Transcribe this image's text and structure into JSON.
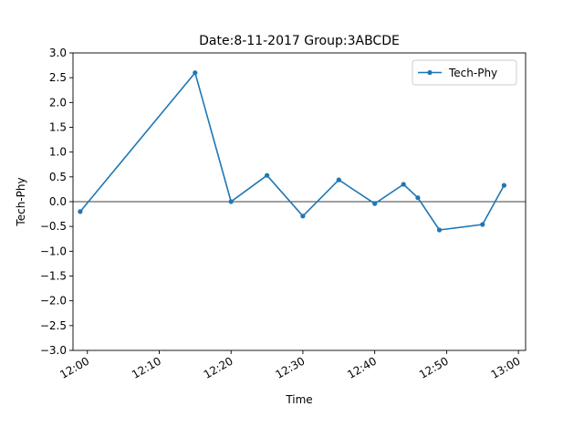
{
  "chart_data": {
    "type": "line",
    "title": "Date:8-11-2017 Group:3ABCDE",
    "xlabel": "Time",
    "ylabel": "Tech-Phy",
    "xlim": [
      "11:58",
      "13:01"
    ],
    "ylim": [
      -3.0,
      3.0
    ],
    "x_ticks": [
      "12:00",
      "12:10",
      "12:20",
      "12:30",
      "12:40",
      "12:50",
      "13:00"
    ],
    "y_ticks": [
      "3.0",
      "2.5",
      "2.0",
      "1.5",
      "1.0",
      "0.5",
      "0.0",
      "−0.5",
      "−1.0",
      "−1.5",
      "−2.0",
      "−2.5",
      "−3.0"
    ],
    "grid": false,
    "zero_line": true,
    "legend": {
      "position": "top-right"
    },
    "series": [
      {
        "name": "Tech-Phy",
        "color": "#1f77b4",
        "marker": "point",
        "x": [
          "11:59",
          "12:15",
          "12:20",
          "12:25",
          "12:30",
          "12:35",
          "12:40",
          "12:44",
          "12:46",
          "12:49",
          "12:55",
          "12:58"
        ],
        "y": [
          -0.2,
          2.6,
          0.0,
          0.53,
          -0.29,
          0.44,
          -0.04,
          0.35,
          0.08,
          -0.57,
          -0.46,
          0.33
        ]
      }
    ]
  }
}
